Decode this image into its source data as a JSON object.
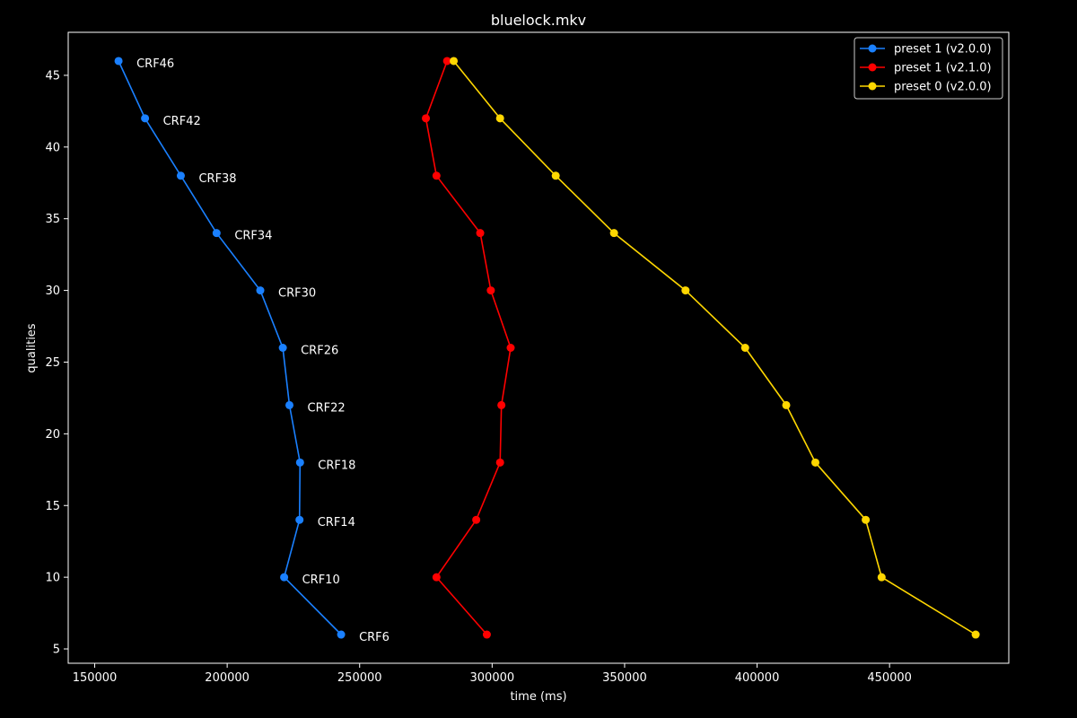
{
  "chart_data": {
    "type": "line",
    "title": "bluelock.mkv",
    "xlabel": "time (ms)",
    "ylabel": "qualities",
    "xlim": [
      140000,
      495000
    ],
    "ylim": [
      4,
      48
    ],
    "xticks": [
      150000,
      200000,
      250000,
      300000,
      350000,
      400000,
      450000
    ],
    "yticks": [
      5,
      10,
      15,
      20,
      25,
      30,
      35,
      40,
      45
    ],
    "grid": false,
    "legend_position": "top-right",
    "point_labels": [
      "CRF46",
      "CRF42",
      "CRF38",
      "CRF34",
      "CRF30",
      "CRF26",
      "CRF22",
      "CRF18",
      "CRF14",
      "CRF10",
      "CRF6"
    ],
    "point_labels_series": 0,
    "series": [
      {
        "name": "preset 1 (v2.0.0)",
        "color": "#1a80ff",
        "points": [
          {
            "x": 159000,
            "y": 46
          },
          {
            "x": 169000,
            "y": 42
          },
          {
            "x": 182500,
            "y": 38
          },
          {
            "x": 196000,
            "y": 34
          },
          {
            "x": 212500,
            "y": 30
          },
          {
            "x": 221000,
            "y": 26
          },
          {
            "x": 223500,
            "y": 22
          },
          {
            "x": 227500,
            "y": 18
          },
          {
            "x": 227300,
            "y": 14
          },
          {
            "x": 221500,
            "y": 10
          },
          {
            "x": 243000,
            "y": 6
          }
        ]
      },
      {
        "name": "preset 1 (v2.1.0)",
        "color": "#ff0000",
        "points": [
          {
            "x": 283000,
            "y": 46
          },
          {
            "x": 275000,
            "y": 42
          },
          {
            "x": 279000,
            "y": 38
          },
          {
            "x": 295500,
            "y": 34
          },
          {
            "x": 299500,
            "y": 30
          },
          {
            "x": 307000,
            "y": 26
          },
          {
            "x": 303500,
            "y": 22
          },
          {
            "x": 303000,
            "y": 18
          },
          {
            "x": 294000,
            "y": 14
          },
          {
            "x": 279000,
            "y": 10
          },
          {
            "x": 298000,
            "y": 6
          }
        ]
      },
      {
        "name": "preset 0 (v2.0.0)",
        "color": "#ffd700",
        "points": [
          {
            "x": 285500,
            "y": 46
          },
          {
            "x": 303000,
            "y": 42
          },
          {
            "x": 324000,
            "y": 38
          },
          {
            "x": 346000,
            "y": 34
          },
          {
            "x": 373000,
            "y": 30
          },
          {
            "x": 395500,
            "y": 26
          },
          {
            "x": 411000,
            "y": 22
          },
          {
            "x": 422000,
            "y": 18
          },
          {
            "x": 441000,
            "y": 14
          },
          {
            "x": 447000,
            "y": 10
          },
          {
            "x": 482500,
            "y": 6
          }
        ]
      }
    ]
  }
}
